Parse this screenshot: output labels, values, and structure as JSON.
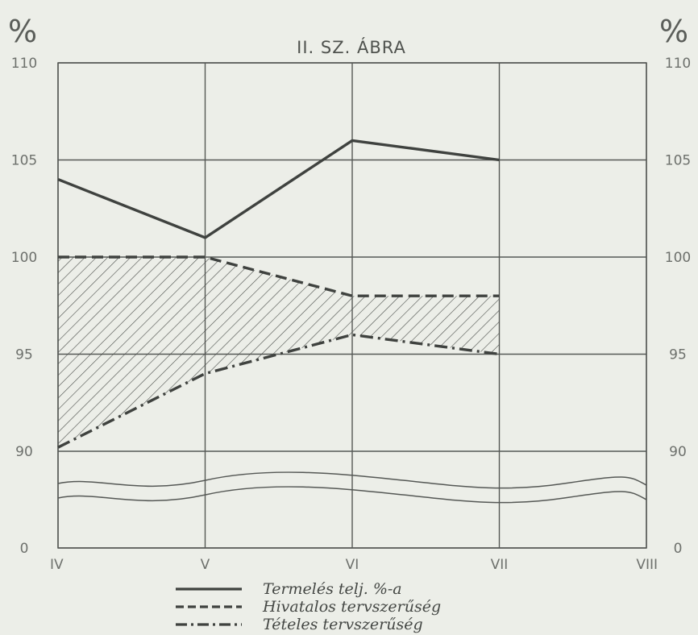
{
  "chart_data": {
    "type": "line",
    "title": "II. SZ. ÁBRA",
    "unit_left": "%",
    "unit_right": "%",
    "categories": [
      "IV",
      "V",
      "VI",
      "VII",
      "VIII"
    ],
    "y_ticks": [
      "110",
      "105",
      "100",
      "95",
      "90",
      "0"
    ],
    "y_tick_values": [
      110,
      105,
      100,
      95,
      90,
      0
    ],
    "ylim": [
      85,
      110
    ],
    "axis_break": "between 0 and 90",
    "grid": true,
    "legend_position": "bottom-center",
    "series": [
      {
        "name": "Termelés telj. %-a",
        "style": "solid",
        "values": [
          104,
          101,
          106,
          105,
          null
        ]
      },
      {
        "name": "Hivatalos tervszerűség",
        "style": "dashed",
        "values": [
          100,
          100,
          98,
          98,
          null
        ]
      },
      {
        "name": "Tételes tervszerűség",
        "style": "dash-dot",
        "values": [
          90.2,
          94,
          96,
          95,
          null
        ]
      }
    ],
    "shaded_region": "between Hivatalos tervszerűség and Tételes tervszerűség (hatched)",
    "colors": {
      "line": "#3f423f",
      "grid": "#555855",
      "background": "#eceee8"
    }
  }
}
